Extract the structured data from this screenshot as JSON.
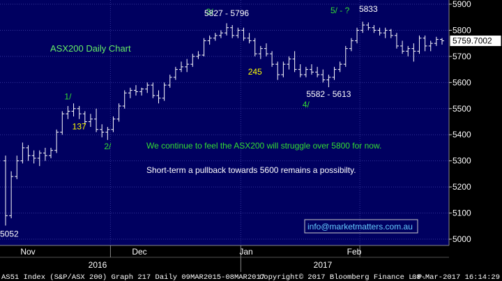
{
  "chart_data": {
    "type": "ohlc",
    "title": "ASX200 Daily Chart",
    "x_axis": {
      "months": [
        "Nov",
        "Dec",
        "Jan",
        "Feb"
      ],
      "years": [
        "2016",
        "2017"
      ]
    },
    "y_axis": {
      "range": [
        5000,
        5900
      ],
      "ticks": [
        5000,
        5100,
        5200,
        5300,
        5400,
        5500,
        5600,
        5700,
        5800,
        5900
      ]
    },
    "last_price": "5759.7002",
    "grid": true,
    "series": [
      {
        "name": "",
        "bars": [
          {
            "o": 5300,
            "h": 5320,
            "l": 5052,
            "c": 5090
          },
          {
            "o": 5090,
            "h": 5260,
            "l": 5080,
            "c": 5240
          },
          {
            "o": 5240,
            "h": 5320,
            "l": 5230,
            "c": 5300
          },
          {
            "o": 5300,
            "h": 5370,
            "l": 5290,
            "c": 5350
          },
          {
            "o": 5350,
            "h": 5360,
            "l": 5300,
            "c": 5320
          },
          {
            "o": 5320,
            "h": 5340,
            "l": 5290,
            "c": 5310
          },
          {
            "o": 5310,
            "h": 5340,
            "l": 5280,
            "c": 5330
          },
          {
            "o": 5330,
            "h": 5350,
            "l": 5300,
            "c": 5320
          },
          {
            "o": 5320,
            "h": 5350,
            "l": 5310,
            "c": 5340
          },
          {
            "o": 5340,
            "h": 5420,
            "l": 5330,
            "c": 5410
          },
          {
            "o": 5410,
            "h": 5490,
            "l": 5400,
            "c": 5480
          },
          {
            "o": 5480,
            "h": 5510,
            "l": 5460,
            "c": 5490
          },
          {
            "o": 5490,
            "h": 5520,
            "l": 5470,
            "c": 5500
          },
          {
            "o": 5500,
            "h": 5510,
            "l": 5460,
            "c": 5480
          },
          {
            "o": 5480,
            "h": 5490,
            "l": 5440,
            "c": 5450
          },
          {
            "o": 5450,
            "h": 5480,
            "l": 5430,
            "c": 5460
          },
          {
            "o": 5460,
            "h": 5500,
            "l": 5410,
            "c": 5420
          },
          {
            "o": 5420,
            "h": 5440,
            "l": 5390,
            "c": 5410
          },
          {
            "o": 5410,
            "h": 5430,
            "l": 5380,
            "c": 5420
          },
          {
            "o": 5420,
            "h": 5470,
            "l": 5410,
            "c": 5460
          },
          {
            "o": 5460,
            "h": 5520,
            "l": 5450,
            "c": 5510
          },
          {
            "o": 5510,
            "h": 5570,
            "l": 5500,
            "c": 5560
          },
          {
            "o": 5560,
            "h": 5580,
            "l": 5540,
            "c": 5570
          },
          {
            "o": 5570,
            "h": 5590,
            "l": 5550,
            "c": 5565
          },
          {
            "o": 5565,
            "h": 5580,
            "l": 5550,
            "c": 5575
          },
          {
            "o": 5575,
            "h": 5600,
            "l": 5560,
            "c": 5590
          },
          {
            "o": 5590,
            "h": 5600,
            "l": 5540,
            "c": 5550
          },
          {
            "o": 5550,
            "h": 5570,
            "l": 5520,
            "c": 5540
          },
          {
            "o": 5540,
            "h": 5600,
            "l": 5530,
            "c": 5590
          },
          {
            "o": 5590,
            "h": 5630,
            "l": 5580,
            "c": 5620
          },
          {
            "o": 5620,
            "h": 5660,
            "l": 5610,
            "c": 5650
          },
          {
            "o": 5650,
            "h": 5680,
            "l": 5640,
            "c": 5660
          },
          {
            "o": 5660,
            "h": 5690,
            "l": 5640,
            "c": 5670
          },
          {
            "o": 5670,
            "h": 5710,
            "l": 5660,
            "c": 5700
          },
          {
            "o": 5700,
            "h": 5720,
            "l": 5690,
            "c": 5705
          },
          {
            "o": 5705,
            "h": 5770,
            "l": 5700,
            "c": 5760
          },
          {
            "o": 5760,
            "h": 5780,
            "l": 5745,
            "c": 5770
          },
          {
            "o": 5770,
            "h": 5790,
            "l": 5760,
            "c": 5780
          },
          {
            "o": 5780,
            "h": 5800,
            "l": 5770,
            "c": 5790
          },
          {
            "o": 5790,
            "h": 5827,
            "l": 5780,
            "c": 5810
          },
          {
            "o": 5810,
            "h": 5820,
            "l": 5770,
            "c": 5780
          },
          {
            "o": 5780,
            "h": 5810,
            "l": 5770,
            "c": 5800
          },
          {
            "o": 5800,
            "h": 5810,
            "l": 5760,
            "c": 5770
          },
          {
            "o": 5770,
            "h": 5790,
            "l": 5750,
            "c": 5760
          },
          {
            "o": 5760,
            "h": 5770,
            "l": 5700,
            "c": 5710
          },
          {
            "o": 5710,
            "h": 5740,
            "l": 5690,
            "c": 5730
          },
          {
            "o": 5730,
            "h": 5750,
            "l": 5700,
            "c": 5710
          },
          {
            "o": 5710,
            "h": 5720,
            "l": 5660,
            "c": 5670
          },
          {
            "o": 5670,
            "h": 5680,
            "l": 5610,
            "c": 5630
          },
          {
            "o": 5630,
            "h": 5680,
            "l": 5620,
            "c": 5670
          },
          {
            "o": 5670,
            "h": 5700,
            "l": 5650,
            "c": 5690
          },
          {
            "o": 5690,
            "h": 5720,
            "l": 5640,
            "c": 5650
          },
          {
            "o": 5650,
            "h": 5670,
            "l": 5620,
            "c": 5630
          },
          {
            "o": 5630,
            "h": 5660,
            "l": 5620,
            "c": 5650
          },
          {
            "o": 5650,
            "h": 5670,
            "l": 5630,
            "c": 5640
          },
          {
            "o": 5640,
            "h": 5660,
            "l": 5620,
            "c": 5630
          },
          {
            "o": 5630,
            "h": 5650,
            "l": 5600,
            "c": 5610
          },
          {
            "o": 5610,
            "h": 5630,
            "l": 5582,
            "c": 5620
          },
          {
            "o": 5620,
            "h": 5660,
            "l": 5610,
            "c": 5650
          },
          {
            "o": 5650,
            "h": 5680,
            "l": 5640,
            "c": 5670
          },
          {
            "o": 5670,
            "h": 5740,
            "l": 5660,
            "c": 5730
          },
          {
            "o": 5730,
            "h": 5770,
            "l": 5720,
            "c": 5760
          },
          {
            "o": 5760,
            "h": 5810,
            "l": 5750,
            "c": 5800
          },
          {
            "o": 5800,
            "h": 5833,
            "l": 5790,
            "c": 5820
          },
          {
            "o": 5820,
            "h": 5830,
            "l": 5800,
            "c": 5810
          },
          {
            "o": 5810,
            "h": 5820,
            "l": 5790,
            "c": 5800
          },
          {
            "o": 5800,
            "h": 5810,
            "l": 5780,
            "c": 5790
          },
          {
            "o": 5790,
            "h": 5810,
            "l": 5770,
            "c": 5800
          },
          {
            "o": 5800,
            "h": 5805,
            "l": 5770,
            "c": 5780
          },
          {
            "o": 5780,
            "h": 5790,
            "l": 5730,
            "c": 5740
          },
          {
            "o": 5740,
            "h": 5760,
            "l": 5710,
            "c": 5720
          },
          {
            "o": 5720,
            "h": 5740,
            "l": 5700,
            "c": 5730
          },
          {
            "o": 5730,
            "h": 5750,
            "l": 5680,
            "c": 5720
          },
          {
            "o": 5720,
            "h": 5780,
            "l": 5710,
            "c": 5770
          },
          {
            "o": 5770,
            "h": 5780,
            "l": 5720,
            "c": 5740
          },
          {
            "o": 5740,
            "h": 5760,
            "l": 5720,
            "c": 5750
          },
          {
            "o": 5750,
            "h": 5775,
            "l": 5740,
            "c": 5765
          },
          {
            "o": 5765,
            "h": 5770,
            "l": 5745,
            "c": 5759.7
          }
        ]
      }
    ],
    "annotations": [
      {
        "text": "1/",
        "color": "#33dd33",
        "x_bar": 11,
        "y": 5535
      },
      {
        "text": "137",
        "color": "#ffff00",
        "x_bar": 13,
        "y": 5420
      },
      {
        "text": "2/",
        "color": "#33dd33",
        "x_bar": 18,
        "y": 5345
      },
      {
        "text": "3/",
        "color": "#33dd33",
        "x_bar": 36,
        "y": 5860
      },
      {
        "text": "5827 - 5796",
        "color": "#ffffff",
        "x_bar": 39,
        "y": 5855
      },
      {
        "text": "245",
        "color": "#ffff00",
        "x_bar": 44,
        "y": 5630
      },
      {
        "text": "5582 - 5613",
        "color": "#ffffff",
        "x_bar": 57,
        "y": 5545
      },
      {
        "text": "4/",
        "color": "#33dd33",
        "x_bar": 53,
        "y": 5505
      },
      {
        "text": "5/ - ?",
        "color": "#33dd33",
        "x_bar": 59,
        "y": 5865
      },
      {
        "text": "5833",
        "color": "#ffffff",
        "x_bar": 64,
        "y": 5870
      },
      {
        "text": "5052",
        "color": "#ffffff",
        "x_bar": 1,
        "y": 5010
      }
    ],
    "commentary": [
      {
        "text": "We continue to feel the ASX200 will struggle over 5800 for now.",
        "color": "#33dd33"
      },
      {
        "text": "Short-term a pullback towards 5600 remains a possibilty.",
        "color": "#ffffff"
      }
    ],
    "website": "info@marketmatters.com.au",
    "colors": {
      "background": "#000060",
      "bar": "#ffffff",
      "grid": "#333399",
      "green_text": "#33dd33",
      "title_text": "#66ee66",
      "website_text": "#66ccff"
    }
  },
  "footer": {
    "left": "AS51 Index (S&P/ASX 200) Graph 217  Daily 09MAR2015-08MAR2017",
    "center": "Copyright© 2017 Bloomberg Finance L.P.",
    "right": "08-Mar-2017 16:14:29"
  }
}
